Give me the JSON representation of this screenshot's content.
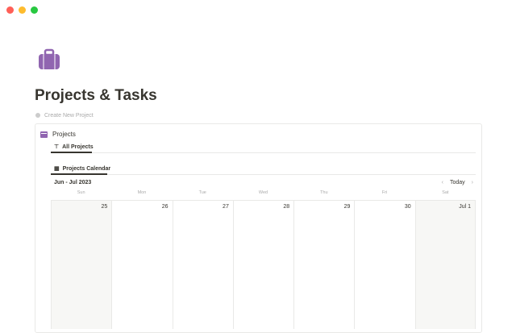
{
  "window": {
    "controls": [
      "#ff5f57",
      "#febc2e",
      "#28c840"
    ]
  },
  "page": {
    "icon": "briefcase-icon",
    "icon_color": "#9065b0",
    "title": "Projects & Tasks",
    "create_button": "Create New Project"
  },
  "database": {
    "title": "Projects",
    "icon": "folder-icon",
    "view_tab": "All Projects",
    "sub_tab": "Projects Calendar"
  },
  "calendar": {
    "month": "Jun - Jul 2023",
    "today": "Today",
    "weekdays": [
      "Sun",
      "Mon",
      "Tue",
      "Wed",
      "Thu",
      "Fri",
      "Sat"
    ],
    "days": [
      "25",
      "26",
      "27",
      "28",
      "29",
      "30",
      "Jul 1"
    ]
  }
}
